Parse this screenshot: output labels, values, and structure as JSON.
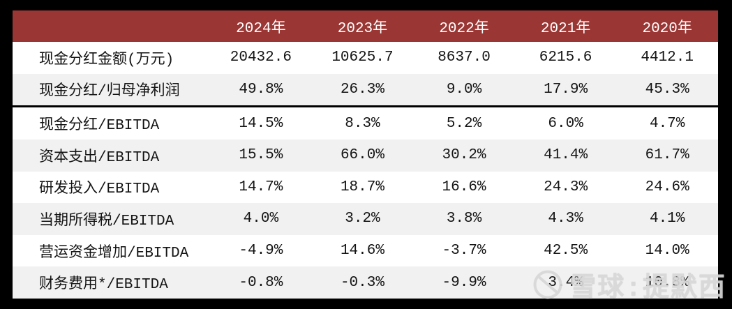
{
  "chart_data": {
    "type": "table",
    "title": "",
    "columns": [
      "",
      "2024年",
      "2023年",
      "2022年",
      "2021年",
      "2020年"
    ],
    "rows": [
      {
        "label": "现金分红金额(万元)",
        "values": [
          "20432.6",
          "10625.7",
          "8637.0",
          "6215.6",
          "4412.1"
        ]
      },
      {
        "label": "现金分红/归母净利润",
        "values": [
          "49.8%",
          "26.3%",
          "9.0%",
          "17.9%",
          "45.3%"
        ]
      },
      {
        "label": "现金分红/EBITDA",
        "values": [
          "14.5%",
          "8.3%",
          "5.2%",
          "6.0%",
          "4.7%"
        ]
      },
      {
        "label": "资本支出/EBITDA",
        "values": [
          "15.5%",
          "66.0%",
          "30.2%",
          "41.4%",
          "61.7%"
        ]
      },
      {
        "label": "研发投入/EBITDA",
        "values": [
          "14.7%",
          "18.7%",
          "16.6%",
          "24.3%",
          "24.6%"
        ]
      },
      {
        "label": "当期所得税/EBITDA",
        "values": [
          "4.0%",
          "3.2%",
          "3.8%",
          "4.3%",
          "4.1%"
        ]
      },
      {
        "label": "营运资金增加/EBITDA",
        "values": [
          "-4.9%",
          "14.6%",
          "-3.7%",
          "42.5%",
          "14.0%"
        ]
      },
      {
        "label": "财务费用*/EBITDA",
        "values": [
          "-0.8%",
          "-0.3%",
          "-9.9%",
          "3.4%",
          "10.8%"
        ]
      }
    ],
    "divider_after_row": 2,
    "layout_hints": {
      "striped_rows": "even rows light gray",
      "header_style": "maroon background, white text"
    }
  },
  "watermark": {
    "text": "雪球:提默西",
    "icon": "snowball-icon"
  },
  "colors": {
    "header_bg": "#9a3734",
    "header_text": "#ffffff",
    "row_bg": "#ffffff",
    "row_alt_bg": "#f1f1f1",
    "text": "#141414",
    "frame_bg": "#000000",
    "divider": "#000000",
    "watermark": "#d7d7d7"
  }
}
